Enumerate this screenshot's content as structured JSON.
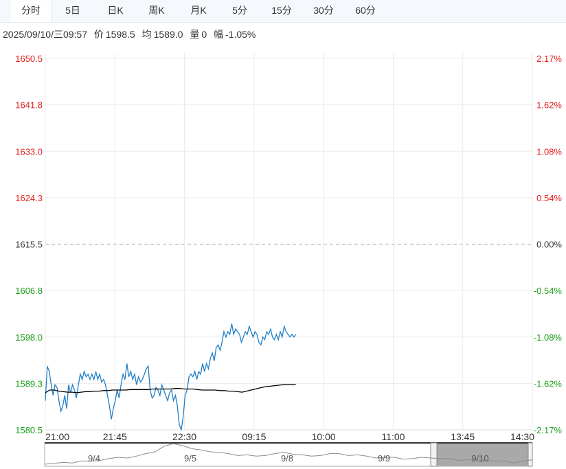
{
  "tabs": [
    "分时",
    "5日",
    "日K",
    "周K",
    "月K",
    "5分",
    "15分",
    "30分",
    "60分"
  ],
  "info": {
    "datetime": "2025/09/10/三09:57",
    "price_label": "价",
    "price": "1598.5",
    "avg_label": "均",
    "avg": "1589.0",
    "vol_label": "量",
    "vol": "0",
    "chg_label": "幅",
    "chg": "-1.05%"
  },
  "colors": {
    "up": "#e0201c",
    "down": "#1a9e1a",
    "price_line": "#1f7fc7",
    "avg_line": "#000000",
    "grid": "#ebebeb"
  },
  "chart_data": {
    "type": "line",
    "ylim": [
      1580.5,
      1650.5
    ],
    "y_ticks": [
      "1650.5",
      "1641.8",
      "1633.0",
      "1624.3",
      "1615.5",
      "1606.8",
      "1598.0",
      "1589.3",
      "1580.5"
    ],
    "pct_ticks": [
      "2.17%",
      "1.62%",
      "1.08%",
      "0.54%",
      "0.00%",
      "-0.54%",
      "-1.08%",
      "-1.62%",
      "-2.17%"
    ],
    "prev_close": 1615.5,
    "x_ticks": [
      "21:00",
      "21:45",
      "22:30",
      "09:15",
      "10:00",
      "11:00",
      "13:45",
      "14:30"
    ],
    "series": [
      {
        "values": [
          1586,
          1592.5,
          1591.5,
          1589,
          1587,
          1589,
          1588.5,
          1586,
          1584,
          1585,
          1587,
          1584.5,
          1589,
          1587.5,
          1589,
          1588,
          1586.5,
          1589,
          1591,
          1590,
          1591.5,
          1590.5,
          1591,
          1590,
          1591,
          1590,
          1591.5,
          1590,
          1591,
          1589.5,
          1590,
          1589,
          1587,
          1585,
          1582.5,
          1584.5,
          1586,
          1588,
          1586.5,
          1589,
          1591,
          1590,
          1593,
          1590.5,
          1591.5,
          1590,
          1591,
          1589,
          1590.5,
          1589.5,
          1590,
          1591,
          1592,
          1592.5,
          1588,
          1586.5,
          1587,
          1588.5,
          1588,
          1587,
          1589,
          1588,
          1587,
          1586,
          1587.5,
          1588,
          1586,
          1587,
          1585,
          1581.5,
          1580.5,
          1583,
          1587,
          1588,
          1590.5,
          1591,
          1590.5,
          1591.5,
          1590,
          1591.5,
          1591,
          1593,
          1591.5,
          1593,
          1592,
          1594,
          1595,
          1593.5,
          1596,
          1596.5,
          1595.5,
          1597,
          1599,
          1598,
          1599,
          1598.5,
          1600.5,
          1598.5,
          1599.5,
          1599,
          1598.5,
          1597,
          1598,
          1599,
          1598.5,
          1600,
          1599,
          1598,
          1599,
          1598.5,
          1597,
          1596.5,
          1598,
          1597.5,
          1599,
          1598.5,
          1599.5,
          1598,
          1597.5,
          1598.5,
          1597.5,
          1599,
          1598,
          1600,
          1599,
          1598.5,
          1598,
          1598.5,
          1598,
          1598.5
        ]
      },
      {
        "values": [
          1587.5,
          1588,
          1588,
          1587.8,
          1587.7,
          1587.6,
          1587.6,
          1587.5,
          1587.6,
          1587.7,
          1587.7,
          1587.8,
          1587.8,
          1587.9,
          1587.9,
          1588,
          1588,
          1588,
          1588,
          1588.1,
          1588.1,
          1588.1,
          1588.1,
          1588.1,
          1588.2,
          1588.2,
          1588.2,
          1588.2,
          1588.2,
          1588.3,
          1588.3,
          1588.2,
          1588.2,
          1588.2,
          1588.1,
          1588,
          1588,
          1588,
          1588,
          1587.9,
          1587.9,
          1587.8,
          1587.8,
          1587.7,
          1587.6,
          1587.8,
          1588,
          1588.2,
          1588.4,
          1588.6,
          1588.7,
          1588.8,
          1588.9,
          1589,
          1589,
          1589,
          1589
        ]
      }
    ]
  },
  "navigator": {
    "labels": [
      "9/4",
      "9/5",
      "9/8",
      "9/9",
      "9/10"
    ]
  }
}
